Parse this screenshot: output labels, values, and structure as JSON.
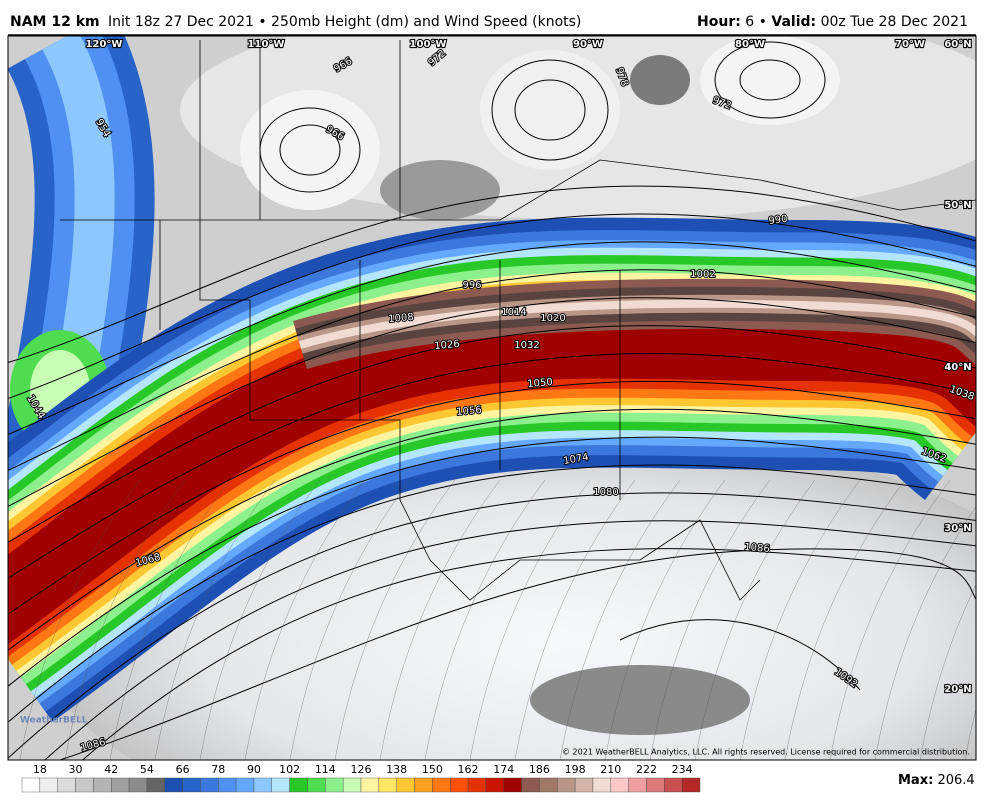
{
  "header": {
    "model": "NAM 12 km",
    "init": "Init 18z 27 Dec 2021 • 250mb Height (dm) and Wind Speed (knots)",
    "hour_label": "Hour:",
    "hour": 6,
    "separator": "•",
    "valid_label": "Valid:",
    "valid": "00z Tue 28 Dec 2021"
  },
  "map": {
    "longitude_labels": [
      "120°W",
      "110°W",
      "100°W",
      "90°W",
      "80°W",
      "70°W",
      "60°N"
    ],
    "latitude_labels": [
      "50°N",
      "40°N",
      "30°N",
      "20°N"
    ],
    "contour_labels": [
      954,
      966,
      972,
      978,
      966,
      972,
      990,
      996,
      1002,
      1008,
      1014,
      1020,
      1026,
      1032,
      1050,
      1038,
      1056,
      1062,
      1074,
      1080,
      1086,
      1068,
      1044,
      1092,
      1086
    ],
    "logo": "WeatherBELL",
    "copyright": "© 2021 WeatherBELL Analytics, LLC. All rights reserved. License required for commercial distribution."
  },
  "colorbar": {
    "labels": [
      18,
      30,
      42,
      54,
      66,
      78,
      90,
      102,
      114,
      126,
      138,
      150,
      162,
      174,
      186,
      198,
      210,
      222,
      234
    ],
    "colors": [
      "#ffffff",
      "#eeeeee",
      "#dcdcdc",
      "#c8c8c8",
      "#b4b4b4",
      "#a0a0a0",
      "#8c8c8c",
      "#646464",
      "#1e50b4",
      "#2864c8",
      "#3c78dc",
      "#5090f0",
      "#64a8ff",
      "#8cc8ff",
      "#b4e6ff",
      "#28c828",
      "#50dc50",
      "#8cf08c",
      "#c8ffb4",
      "#fff5a0",
      "#ffe664",
      "#ffc832",
      "#ffa01e",
      "#ff7814",
      "#ff500a",
      "#e63200",
      "#c81400",
      "#a00000",
      "#8c5a50",
      "#a07868",
      "#b99688",
      "#d2b4a8",
      "#f0dcd2",
      "#ffc8c8",
      "#f0a0a0",
      "#dc7878",
      "#c85050",
      "#b42828"
    ]
  },
  "max": {
    "label": "Max:",
    "value": 206.4
  }
}
